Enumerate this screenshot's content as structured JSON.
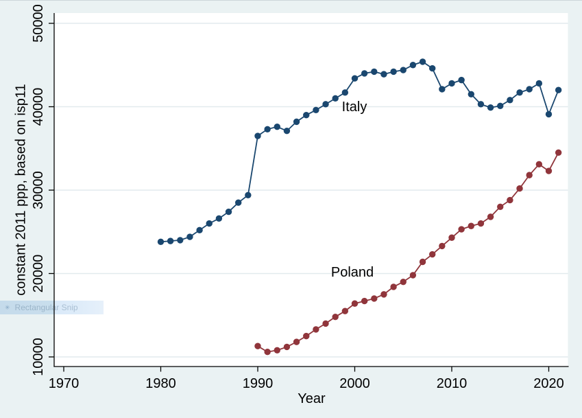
{
  "overlay": {
    "snip_icon": "✳",
    "snip_label": "Rectangular Snip"
  },
  "chart_data": {
    "type": "line",
    "title": "",
    "xlabel": "Year",
    "ylabel": "constant 2011 ppp, based on isp11",
    "xlim": [
      1968.9,
      2022.3
    ],
    "ylim": [
      8700,
      51300
    ],
    "xticks": [
      1970,
      1980,
      1990,
      2000,
      2010,
      2020
    ],
    "yticks": [
      10000,
      20000,
      30000,
      40000,
      50000
    ],
    "grid": "horizontal-only",
    "legend": "inline-series-labels",
    "background_color": "#eaf2f3",
    "plot_background_color": "#ffffff",
    "series": [
      {
        "name": "Italy",
        "color": "#1a476f",
        "years": [
          1980,
          1981,
          1982,
          1983,
          1984,
          1985,
          1986,
          1987,
          1988,
          1989,
          1990,
          1991,
          1992,
          1993,
          1994,
          1995,
          1996,
          1997,
          1998,
          1999,
          2000,
          2001,
          2002,
          2003,
          2004,
          2005,
          2006,
          2007,
          2008,
          2009,
          2010,
          2011,
          2012,
          2013,
          2014,
          2015,
          2016,
          2017,
          2018,
          2019,
          2020,
          2021
        ],
        "values": [
          23800,
          23900,
          24000,
          24400,
          25200,
          26000,
          26600,
          27400,
          28500,
          29400,
          36500,
          37300,
          37600,
          37100,
          38200,
          39000,
          39600,
          40300,
          41000,
          41700,
          43400,
          44000,
          44200,
          43900,
          44200,
          44400,
          45000,
          45400,
          44600,
          42100,
          42800,
          43200,
          41500,
          40300,
          39900,
          40100,
          40800,
          41700,
          42100,
          42800,
          39100,
          42000
        ]
      },
      {
        "name": "Poland",
        "color": "#90353b",
        "years": [
          1990,
          1991,
          1992,
          1993,
          1994,
          1995,
          1996,
          1997,
          1998,
          1999,
          2000,
          2001,
          2002,
          2003,
          2004,
          2005,
          2006,
          2007,
          2008,
          2009,
          2010,
          2011,
          2012,
          2013,
          2014,
          2015,
          2016,
          2017,
          2018,
          2019,
          2020,
          2021
        ],
        "values": [
          11300,
          10600,
          10800,
          11200,
          11800,
          12500,
          13300,
          14000,
          14800,
          15500,
          16400,
          16700,
          17000,
          17500,
          18400,
          19000,
          19800,
          21400,
          22300,
          23300,
          24300,
          25300,
          25700,
          26000,
          26800,
          28000,
          28800,
          30200,
          31800,
          33100,
          32300,
          34500
        ]
      }
    ]
  }
}
